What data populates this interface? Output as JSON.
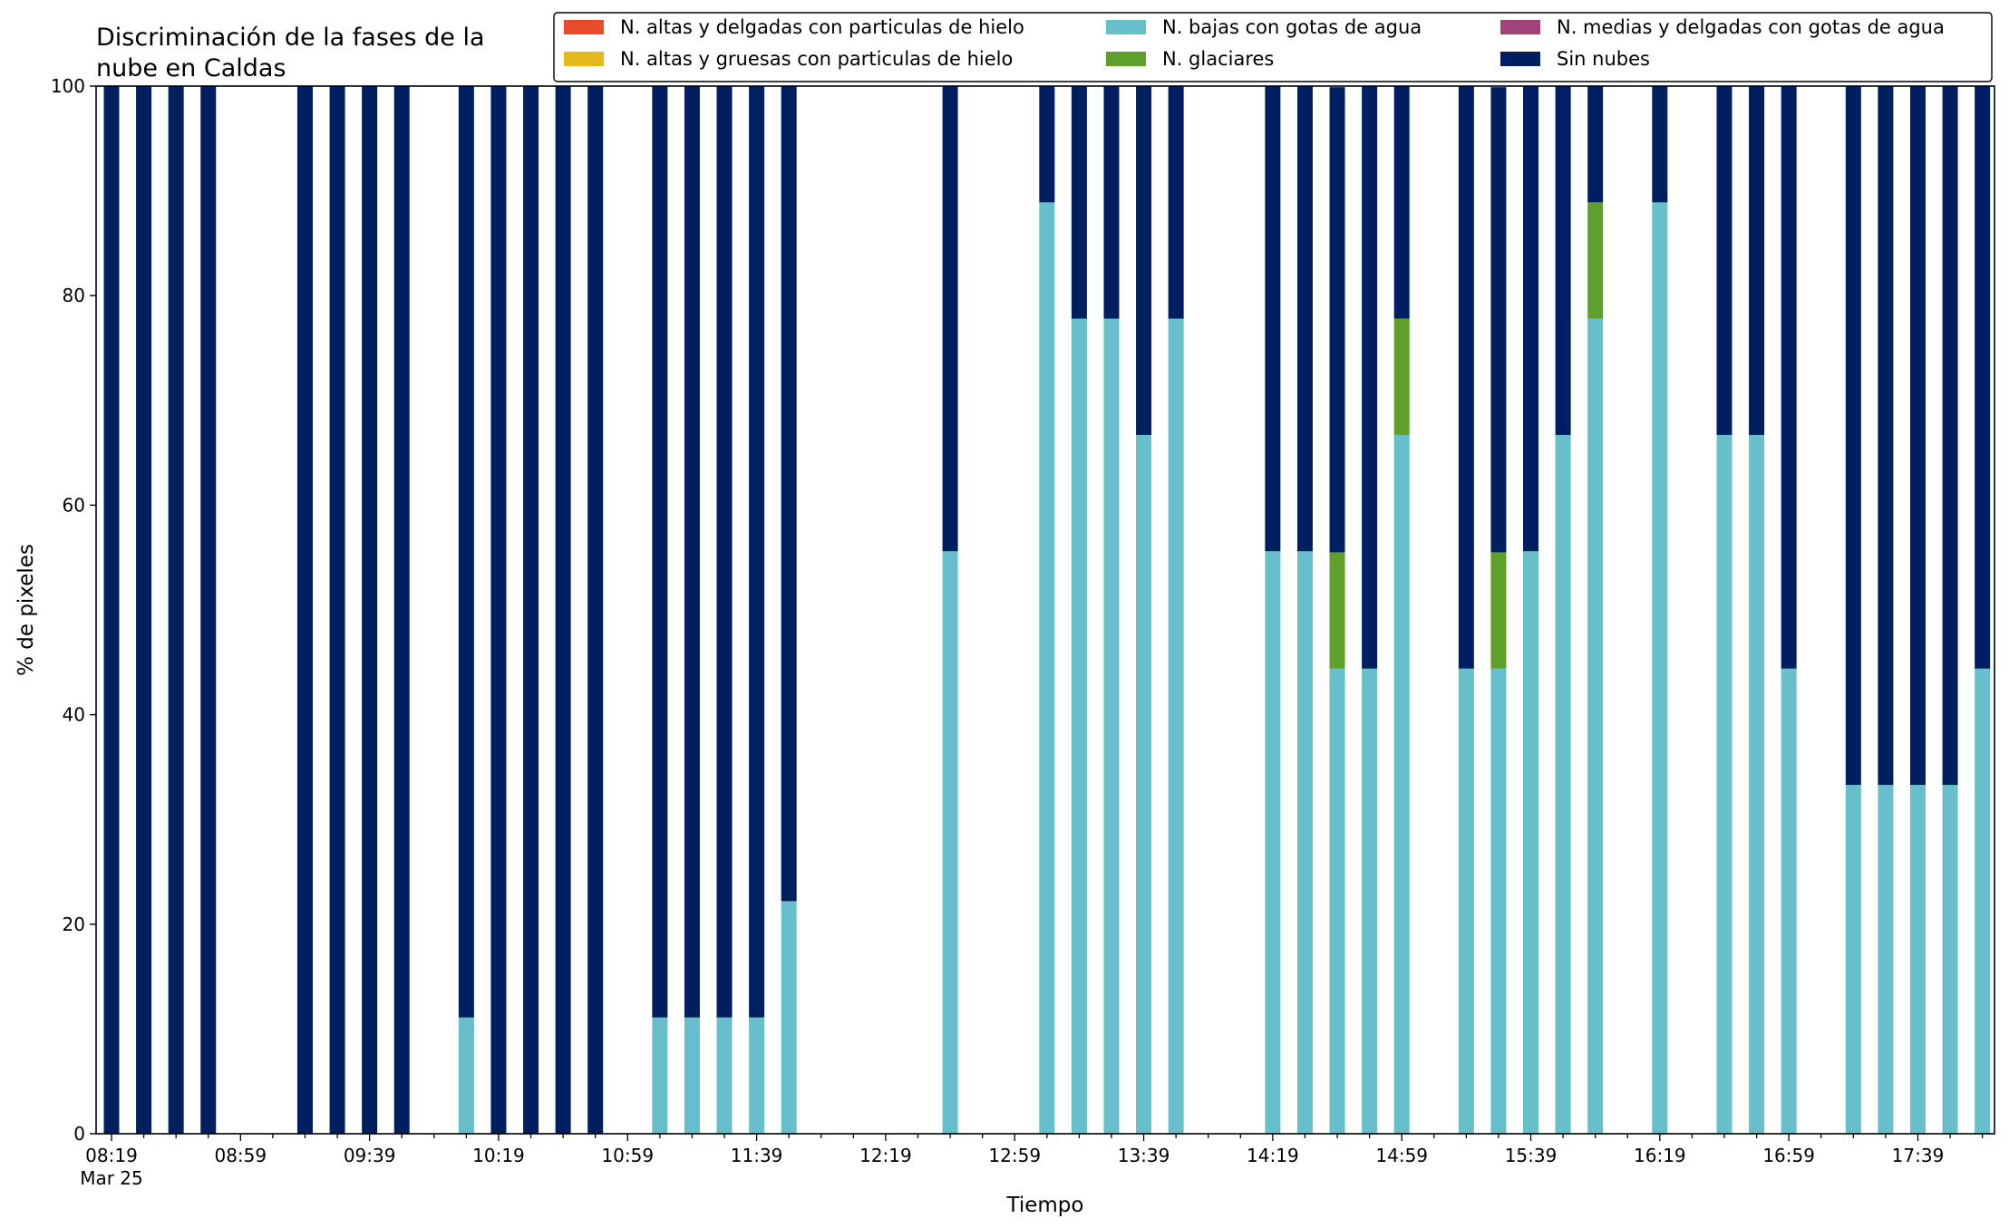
{
  "chart_data": {
    "type": "bar",
    "stacked": true,
    "title_lines": [
      "Discriminación de la fases de la",
      "nube en Caldas"
    ],
    "xlabel": "Tiempo",
    "ylabel": "% de pixeles",
    "ylim": [
      0,
      100
    ],
    "yticks": [
      0,
      20,
      40,
      60,
      80,
      100
    ],
    "x_start": "08:19",
    "x_step_minutes": 10,
    "x_count": 59,
    "x_ticks": [
      {
        "label": "08:19",
        "sub": "Mar 25"
      },
      {
        "label": "08:59"
      },
      {
        "label": "09:39"
      },
      {
        "label": "10:19"
      },
      {
        "label": "10:59"
      },
      {
        "label": "11:39"
      },
      {
        "label": "12:19"
      },
      {
        "label": "12:59"
      },
      {
        "label": "13:39"
      },
      {
        "label": "14:19"
      },
      {
        "label": "14:59"
      },
      {
        "label": "15:39"
      },
      {
        "label": "16:19"
      },
      {
        "label": "16:59"
      },
      {
        "label": "17:39"
      }
    ],
    "legend_position": "top-right",
    "legend": [
      {
        "name": "N. altas y delgadas con particulas de hielo",
        "color": "#e84a2c"
      },
      {
        "name": "N. altas y gruesas con particulas de hielo",
        "color": "#e6b81e"
      },
      {
        "name": "N. bajas con gotas de agua",
        "color": "#66bfca"
      },
      {
        "name": "N. glaciares",
        "color": "#5ea02a"
      },
      {
        "name": "N. medias y delgadas con gotas de agua",
        "color": "#a1437a"
      },
      {
        "name": "Sin nubes",
        "color": "#001f60"
      }
    ],
    "series": [
      {
        "name": "N. altas y delgadas con particulas de hielo",
        "values": [
          0,
          0,
          0,
          0,
          null,
          null,
          0,
          0,
          0,
          0,
          null,
          0,
          0,
          0,
          0,
          0,
          null,
          0,
          0,
          0,
          0,
          0,
          null,
          null,
          null,
          null,
          0,
          null,
          null,
          0,
          0,
          0,
          0,
          0,
          0,
          null,
          0,
          0,
          0,
          0,
          0,
          null,
          0,
          0,
          0,
          0,
          0,
          null,
          0,
          null,
          0,
          0,
          0,
          null,
          0,
          0,
          0,
          0,
          0
        ]
      },
      {
        "name": "N. altas y gruesas con particulas de hielo",
        "values": [
          0,
          0,
          0,
          0,
          null,
          null,
          0,
          0,
          0,
          0,
          null,
          0,
          0,
          0,
          0,
          0,
          null,
          0,
          0,
          0,
          0,
          0,
          null,
          null,
          null,
          null,
          0,
          null,
          null,
          0,
          0,
          0,
          0,
          0,
          0,
          null,
          0,
          0,
          0,
          0,
          0,
          null,
          0,
          0,
          0,
          0,
          0,
          null,
          0,
          null,
          0,
          0,
          0,
          null,
          0,
          0,
          0,
          0,
          0
        ]
      },
      {
        "name": "N. bajas con gotas de agua",
        "values": [
          0,
          0,
          0,
          0,
          null,
          null,
          0,
          0,
          0,
          0,
          null,
          11.1,
          0,
          0,
          0,
          0,
          null,
          11.1,
          11.1,
          11.1,
          11.1,
          22.2,
          null,
          null,
          null,
          null,
          55.6,
          null,
          null,
          88.9,
          77.8,
          77.8,
          66.7,
          77.8,
          0,
          null,
          55.6,
          55.6,
          44.4,
          44.4,
          66.7,
          null,
          44.4,
          44.4,
          55.6,
          66.7,
          77.8,
          null,
          88.9,
          null,
          66.7,
          66.7,
          44.4,
          null,
          33.3,
          33.3,
          33.3,
          33.3,
          44.4
        ]
      },
      {
        "name": "N. glaciares",
        "values": [
          0,
          0,
          0,
          0,
          null,
          null,
          0,
          0,
          0,
          0,
          null,
          0,
          0,
          0,
          0,
          0,
          null,
          0,
          0,
          0,
          0,
          0,
          null,
          null,
          null,
          null,
          0,
          null,
          null,
          0,
          0,
          0,
          0,
          0,
          0,
          null,
          0,
          0,
          11.1,
          0,
          11.1,
          null,
          0,
          11.1,
          0,
          0,
          11.1,
          null,
          0,
          null,
          0,
          0,
          0,
          null,
          0,
          0,
          0,
          0,
          0
        ]
      },
      {
        "name": "N. medias y delgadas con gotas de agua",
        "values": [
          0,
          0,
          0,
          0,
          null,
          null,
          0,
          0,
          0,
          0,
          null,
          0,
          0,
          0,
          0,
          0,
          null,
          0,
          0,
          0,
          0,
          0,
          null,
          null,
          null,
          null,
          0,
          null,
          null,
          0,
          0,
          0,
          0,
          0,
          0,
          null,
          0,
          0,
          0,
          0,
          0,
          null,
          0,
          0,
          0,
          0,
          0,
          null,
          0,
          null,
          0,
          0,
          0,
          null,
          0,
          0,
          0,
          0,
          0
        ]
      },
      {
        "name": "Sin nubes",
        "values": [
          100,
          100,
          100,
          100,
          null,
          null,
          100,
          100,
          100,
          100,
          null,
          88.9,
          100,
          100,
          100,
          100,
          null,
          88.9,
          88.9,
          88.9,
          88.9,
          77.8,
          null,
          null,
          null,
          null,
          44.4,
          null,
          null,
          11.1,
          22.2,
          22.2,
          33.3,
          22.2,
          0,
          null,
          44.4,
          44.4,
          44.4,
          55.6,
          22.2,
          null,
          55.6,
          44.4,
          44.4,
          33.3,
          11.1,
          null,
          11.1,
          null,
          33.3,
          33.3,
          55.6,
          null,
          66.7,
          66.7,
          66.7,
          66.7,
          55.6
        ]
      }
    ]
  }
}
